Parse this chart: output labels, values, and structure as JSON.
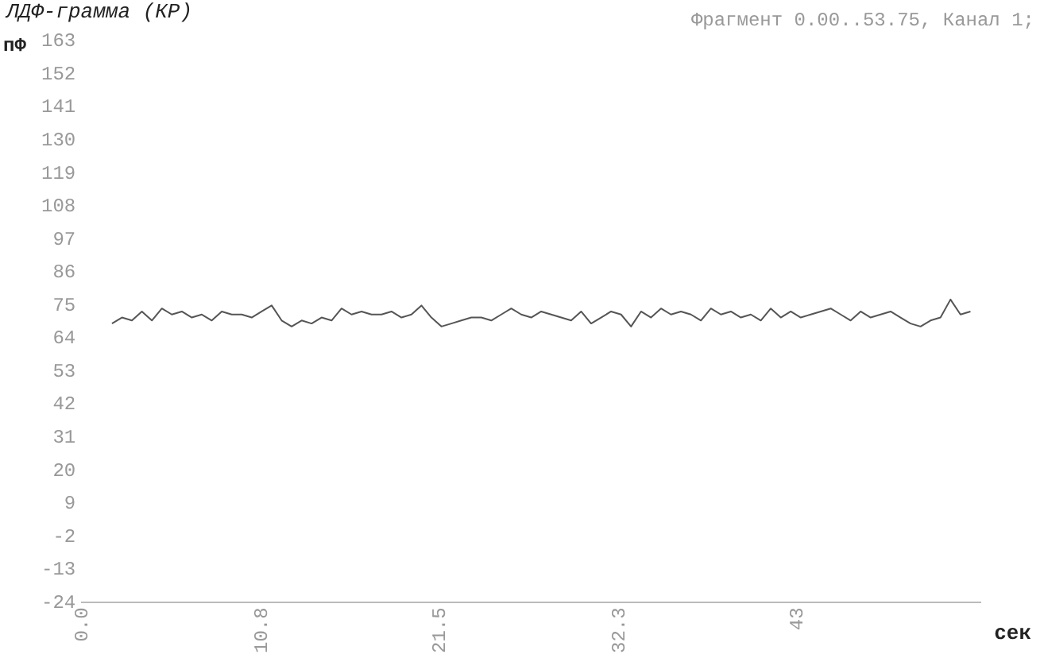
{
  "chart_data": {
    "type": "line",
    "title": "ЛДФ-грамма (КР)",
    "ylabel": "пФ",
    "xlabel": "сек",
    "annotations": [
      "Фрагмент 0.00..53.75, Канал 1;"
    ],
    "x": [
      1.8,
      2.4,
      3.0,
      3.6,
      4.2,
      4.8,
      5.4,
      6.0,
      6.6,
      7.2,
      7.8,
      8.4,
      9.0,
      9.6,
      10.2,
      10.8,
      11.4,
      12.0,
      12.6,
      13.2,
      13.8,
      14.4,
      15.0,
      15.6,
      16.2,
      16.8,
      17.4,
      18.0,
      18.6,
      19.2,
      19.8,
      20.4,
      21.0,
      21.6,
      22.2,
      22.8,
      23.4,
      24.0,
      24.6,
      25.2,
      25.8,
      26.4,
      27.0,
      27.6,
      28.2,
      28.8,
      29.4,
      30.0,
      30.6,
      31.2,
      31.8,
      32.4,
      33.0,
      33.6,
      34.2,
      34.8,
      35.4,
      36.0,
      36.6,
      37.2,
      37.8,
      38.4,
      39.0,
      39.6,
      40.2,
      40.8,
      41.4,
      42.0,
      42.6,
      43.2,
      43.8,
      44.4,
      45.0,
      45.6,
      46.2,
      46.8,
      47.4,
      48.0,
      48.6,
      49.2,
      49.8,
      50.4,
      51.0,
      51.6,
      52.2,
      52.8,
      53.4
    ],
    "series": [
      {
        "color": "#555555",
        "values": [
          69,
          71,
          70,
          73,
          70,
          74,
          72,
          73,
          71,
          72,
          70,
          73,
          72,
          72,
          71,
          73,
          75,
          70,
          68,
          70,
          69,
          71,
          70,
          74,
          72,
          73,
          72,
          72,
          73,
          71,
          72,
          75,
          71,
          68,
          69,
          70,
          71,
          71,
          70,
          72,
          74,
          72,
          71,
          73,
          72,
          71,
          70,
          73,
          69,
          71,
          73,
          72,
          68,
          73,
          71,
          74,
          72,
          73,
          72,
          70,
          74,
          72,
          73,
          71,
          72,
          70,
          74,
          71,
          73,
          71,
          72,
          73,
          74,
          72,
          70,
          73,
          71,
          72,
          73,
          71,
          69,
          68,
          70,
          71,
          77,
          72,
          73
        ]
      }
    ],
    "xlim": [
      0,
      54
    ],
    "xticks": [
      {
        "value": 0,
        "label": "0.0"
      },
      10.8,
      21.5,
      32.3,
      43
    ],
    "ylim": [
      -24,
      163
    ],
    "yticks": [
      163,
      152,
      141,
      130,
      119,
      108,
      97,
      86,
      75,
      64,
      53,
      42,
      31,
      20,
      9,
      -2,
      -13,
      -24
    ],
    "grid": false,
    "legend": false,
    "marker": "none",
    "line_style": "solid"
  }
}
